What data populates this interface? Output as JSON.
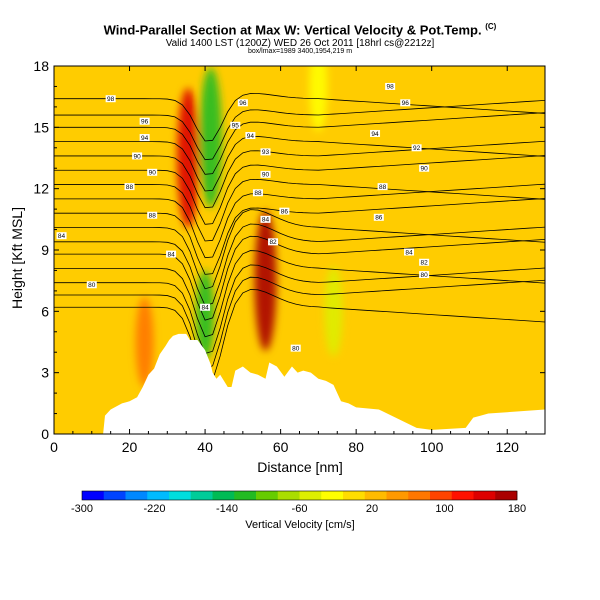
{
  "header": {
    "title": "Wind-Parallel Section at Max W: Vertical Velocity & Pot.Temp.",
    "title_mark": "(C)",
    "subtitle": "Valid 1400 LST (1200Z) WED 26 Oct 2011 [18hrl cs@2212z]",
    "subtitle2": "box/lmax=1989 3400,1954,219 m"
  },
  "chart_data": {
    "type": "heatmap",
    "xlabel": "Distance [nm]",
    "ylabel": "Height [Kft MSL]",
    "xlim": [
      0,
      130
    ],
    "ylim": [
      0,
      18
    ],
    "x_ticks": [
      "0",
      "20",
      "40",
      "60",
      "80",
      "100",
      "120"
    ],
    "y_ticks": [
      "0",
      "3",
      "6",
      "9",
      "12",
      "15",
      "18"
    ],
    "terrain": {
      "x": [
        0,
        13,
        13.5,
        15,
        18,
        20,
        22,
        23.5,
        25,
        26.5,
        28,
        29.5,
        30.5,
        31.5,
        33,
        35,
        36,
        38,
        40,
        41.5,
        42,
        43,
        44,
        45,
        46,
        47,
        48,
        50,
        52,
        54,
        56,
        57,
        59,
        61,
        63,
        64.5,
        66,
        68,
        70,
        72,
        74,
        75.5,
        76,
        78,
        80,
        86,
        96,
        100,
        109,
        111,
        113,
        115,
        130
      ],
      "height_kft": [
        0,
        0,
        0.9,
        1.2,
        1.5,
        1.6,
        1.8,
        2.3,
        2.9,
        3.2,
        3.9,
        4.3,
        4.6,
        4.8,
        4.9,
        4.9,
        4.6,
        4.6,
        4.1,
        3.4,
        3.0,
        2.7,
        2.9,
        2.6,
        2.3,
        2.3,
        3.1,
        3.3,
        3.0,
        2.9,
        2.7,
        3.5,
        3.3,
        2.8,
        3.3,
        3.0,
        3.1,
        3.0,
        2.7,
        2.6,
        2.4,
        1.8,
        1.6,
        1.5,
        1.3,
        1.2,
        0.3,
        0.2,
        0.3,
        0.8,
        0.9,
        1.0,
        1.2
      ]
    },
    "vertical_velocity_features_cm_s": [
      {
        "x": 35.5,
        "height_kft": 13.5,
        "value": 150
      },
      {
        "x": 41.5,
        "height_kft": 14.5,
        "value": -130
      },
      {
        "x": 40,
        "height_kft": 5.8,
        "value": -110
      },
      {
        "x": 56,
        "height_kft": 7.5,
        "value": 170
      },
      {
        "x": 74,
        "height_kft": 6.0,
        "value": -40
      },
      {
        "x": 70,
        "height_kft": 17.0,
        "value": -20
      },
      {
        "x": 24,
        "height_kft": 4.5,
        "value": 70
      }
    ],
    "theta_contour_labels": [
      {
        "text": "98",
        "x": 15,
        "height_kft": 16.4
      },
      {
        "text": "96",
        "x": 24,
        "height_kft": 15.3
      },
      {
        "text": "94",
        "x": 24,
        "height_kft": 14.5
      },
      {
        "text": "90",
        "x": 22,
        "height_kft": 13.6
      },
      {
        "text": "90",
        "x": 26,
        "height_kft": 12.8
      },
      {
        "text": "88",
        "x": 20,
        "height_kft": 12.1
      },
      {
        "text": "88",
        "x": 26,
        "height_kft": 10.7
      },
      {
        "text": "84",
        "x": 2,
        "height_kft": 9.7
      },
      {
        "text": "84",
        "x": 31,
        "height_kft": 8.8
      },
      {
        "text": "80",
        "x": 10,
        "height_kft": 7.3
      },
      {
        "text": "84",
        "x": 40,
        "height_kft": 6.2
      },
      {
        "text": "96",
        "x": 50,
        "height_kft": 16.2
      },
      {
        "text": "95",
        "x": 48,
        "height_kft": 15.1
      },
      {
        "text": "94",
        "x": 52,
        "height_kft": 14.6
      },
      {
        "text": "93",
        "x": 56,
        "height_kft": 13.8
      },
      {
        "text": "90",
        "x": 56,
        "height_kft": 12.7
      },
      {
        "text": "88",
        "x": 54,
        "height_kft": 11.8
      },
      {
        "text": "86",
        "x": 61,
        "height_kft": 10.9
      },
      {
        "text": "84",
        "x": 56,
        "height_kft": 10.5
      },
      {
        "text": "82",
        "x": 58,
        "height_kft": 9.4
      },
      {
        "text": "80",
        "x": 64,
        "height_kft": 4.2
      },
      {
        "text": "98",
        "x": 89,
        "height_kft": 17.0
      },
      {
        "text": "96",
        "x": 93,
        "height_kft": 16.2
      },
      {
        "text": "94",
        "x": 85,
        "height_kft": 14.7
      },
      {
        "text": "92",
        "x": 96,
        "height_kft": 14.0
      },
      {
        "text": "90",
        "x": 98,
        "height_kft": 13.0
      },
      {
        "text": "88",
        "x": 87,
        "height_kft": 12.1
      },
      {
        "text": "86",
        "x": 86,
        "height_kft": 10.6
      },
      {
        "text": "84",
        "x": 94,
        "height_kft": 8.9
      },
      {
        "text": "82",
        "x": 98,
        "height_kft": 8.4
      },
      {
        "text": "80",
        "x": 98,
        "height_kft": 7.8
      }
    ],
    "colorbar": {
      "label": "Vertical Velocity [cm/s]",
      "tick_labels": [
        "-300",
        "-220",
        "-140",
        "-60",
        "20",
        "100",
        "180"
      ],
      "range": [
        -300,
        180
      ],
      "colors": [
        "#0000ff",
        "#0044ff",
        "#0088ff",
        "#00bbff",
        "#00dddd",
        "#00cc99",
        "#00bb55",
        "#22bb22",
        "#66cc00",
        "#aadd00",
        "#ddee00",
        "#ffff00",
        "#ffdd00",
        "#ffbb00",
        "#ff9900",
        "#ff7700",
        "#ff4400",
        "#ff1100",
        "#dd0000",
        "#aa0000"
      ]
    },
    "grid": false
  }
}
